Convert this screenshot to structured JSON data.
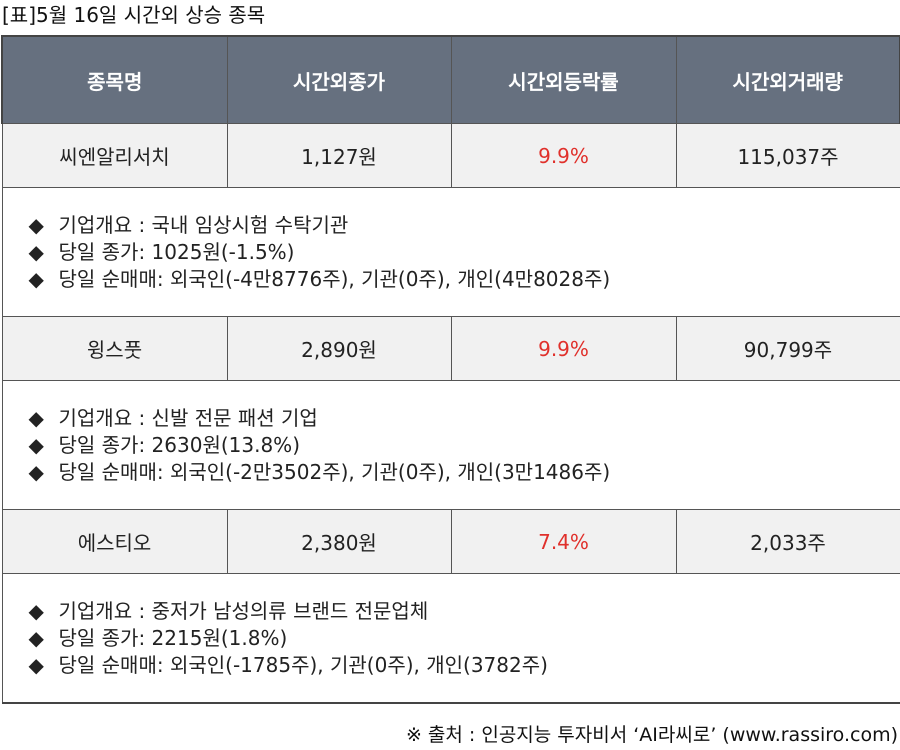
{
  "caption": "[표]5월 16일 시간외 상승 종목",
  "headers": [
    "종목명",
    "시간외종가",
    "시간외등락률",
    "시간외거래량"
  ],
  "rows": [
    {
      "name": "씨엔알리서치",
      "close": "1,127원",
      "rate": "9.9%",
      "volume": "115,037주",
      "info": [
        "기업개요 : 국내 임상시험 수탁기관",
        "당일 종가: 1025원(-1.5%)",
        "당일 순매매: 외국인(-4만8776주), 기관(0주), 개인(4만8028주)"
      ]
    },
    {
      "name": "윙스풋",
      "close": "2,890원",
      "rate": "9.9%",
      "volume": "90,799주",
      "info": [
        "기업개요 : 신발 전문 패션 기업",
        "당일 종가: 2630원(13.8%)",
        "당일 순매매: 외국인(-2만3502주), 기관(0주), 개인(3만1486주)"
      ]
    },
    {
      "name": "에스티오",
      "close": "2,380원",
      "rate": "7.4%",
      "volume": "2,033주",
      "info": [
        "기업개요 : 중저가 남성의류 브랜드 전문업체",
        "당일 종가: 2215원(1.8%)",
        "당일 순매매: 외국인(-1785주), 기관(0주), 개인(3782주)"
      ]
    }
  ],
  "bullet_icon": "◆",
  "source": "※ 출처 : 인공지능 투자비서 ‘AI라씨로’ (www.rassiro.com)",
  "colors": {
    "header_bg": "#66707f",
    "rate_text": "#e0302b",
    "row_bg": "#f1f1f1"
  }
}
